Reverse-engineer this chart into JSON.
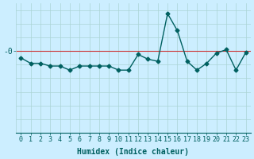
{
  "xlabel": "Humidex (Indice chaleur)",
  "ylabel": "-0",
  "background_color": "#cceeff",
  "line_color": "#006060",
  "grid_color": "#aad4d4",
  "zero_line_color": "#cc3333",
  "x_values": [
    0,
    1,
    2,
    3,
    4,
    5,
    6,
    7,
    8,
    9,
    10,
    11,
    12,
    13,
    14,
    15,
    16,
    17,
    18,
    19,
    20,
    21,
    22,
    23
  ],
  "y_values": [
    -1.0,
    -1.8,
    -1.8,
    -2.2,
    -2.2,
    -2.8,
    -2.2,
    -2.2,
    -2.2,
    -2.2,
    -2.8,
    -2.8,
    -0.5,
    -1.2,
    -1.5,
    5.5,
    3.0,
    -1.5,
    -2.8,
    -1.8,
    -0.3,
    0.2,
    -2.8,
    -0.2
  ],
  "ylim": [
    -12.0,
    7.0
  ],
  "xlim": [
    -0.5,
    23.5
  ],
  "zero_line_y": 0,
  "xticks": [
    0,
    1,
    2,
    3,
    4,
    5,
    6,
    7,
    8,
    9,
    10,
    11,
    12,
    13,
    14,
    15,
    16,
    17,
    18,
    19,
    20,
    21,
    22,
    23
  ],
  "yticks": [
    0
  ],
  "ytick_labels": [
    "-0"
  ],
  "tick_fontsize": 6,
  "xlabel_fontsize": 7,
  "marker": "D",
  "marker_size": 2.5,
  "line_width": 1.0
}
